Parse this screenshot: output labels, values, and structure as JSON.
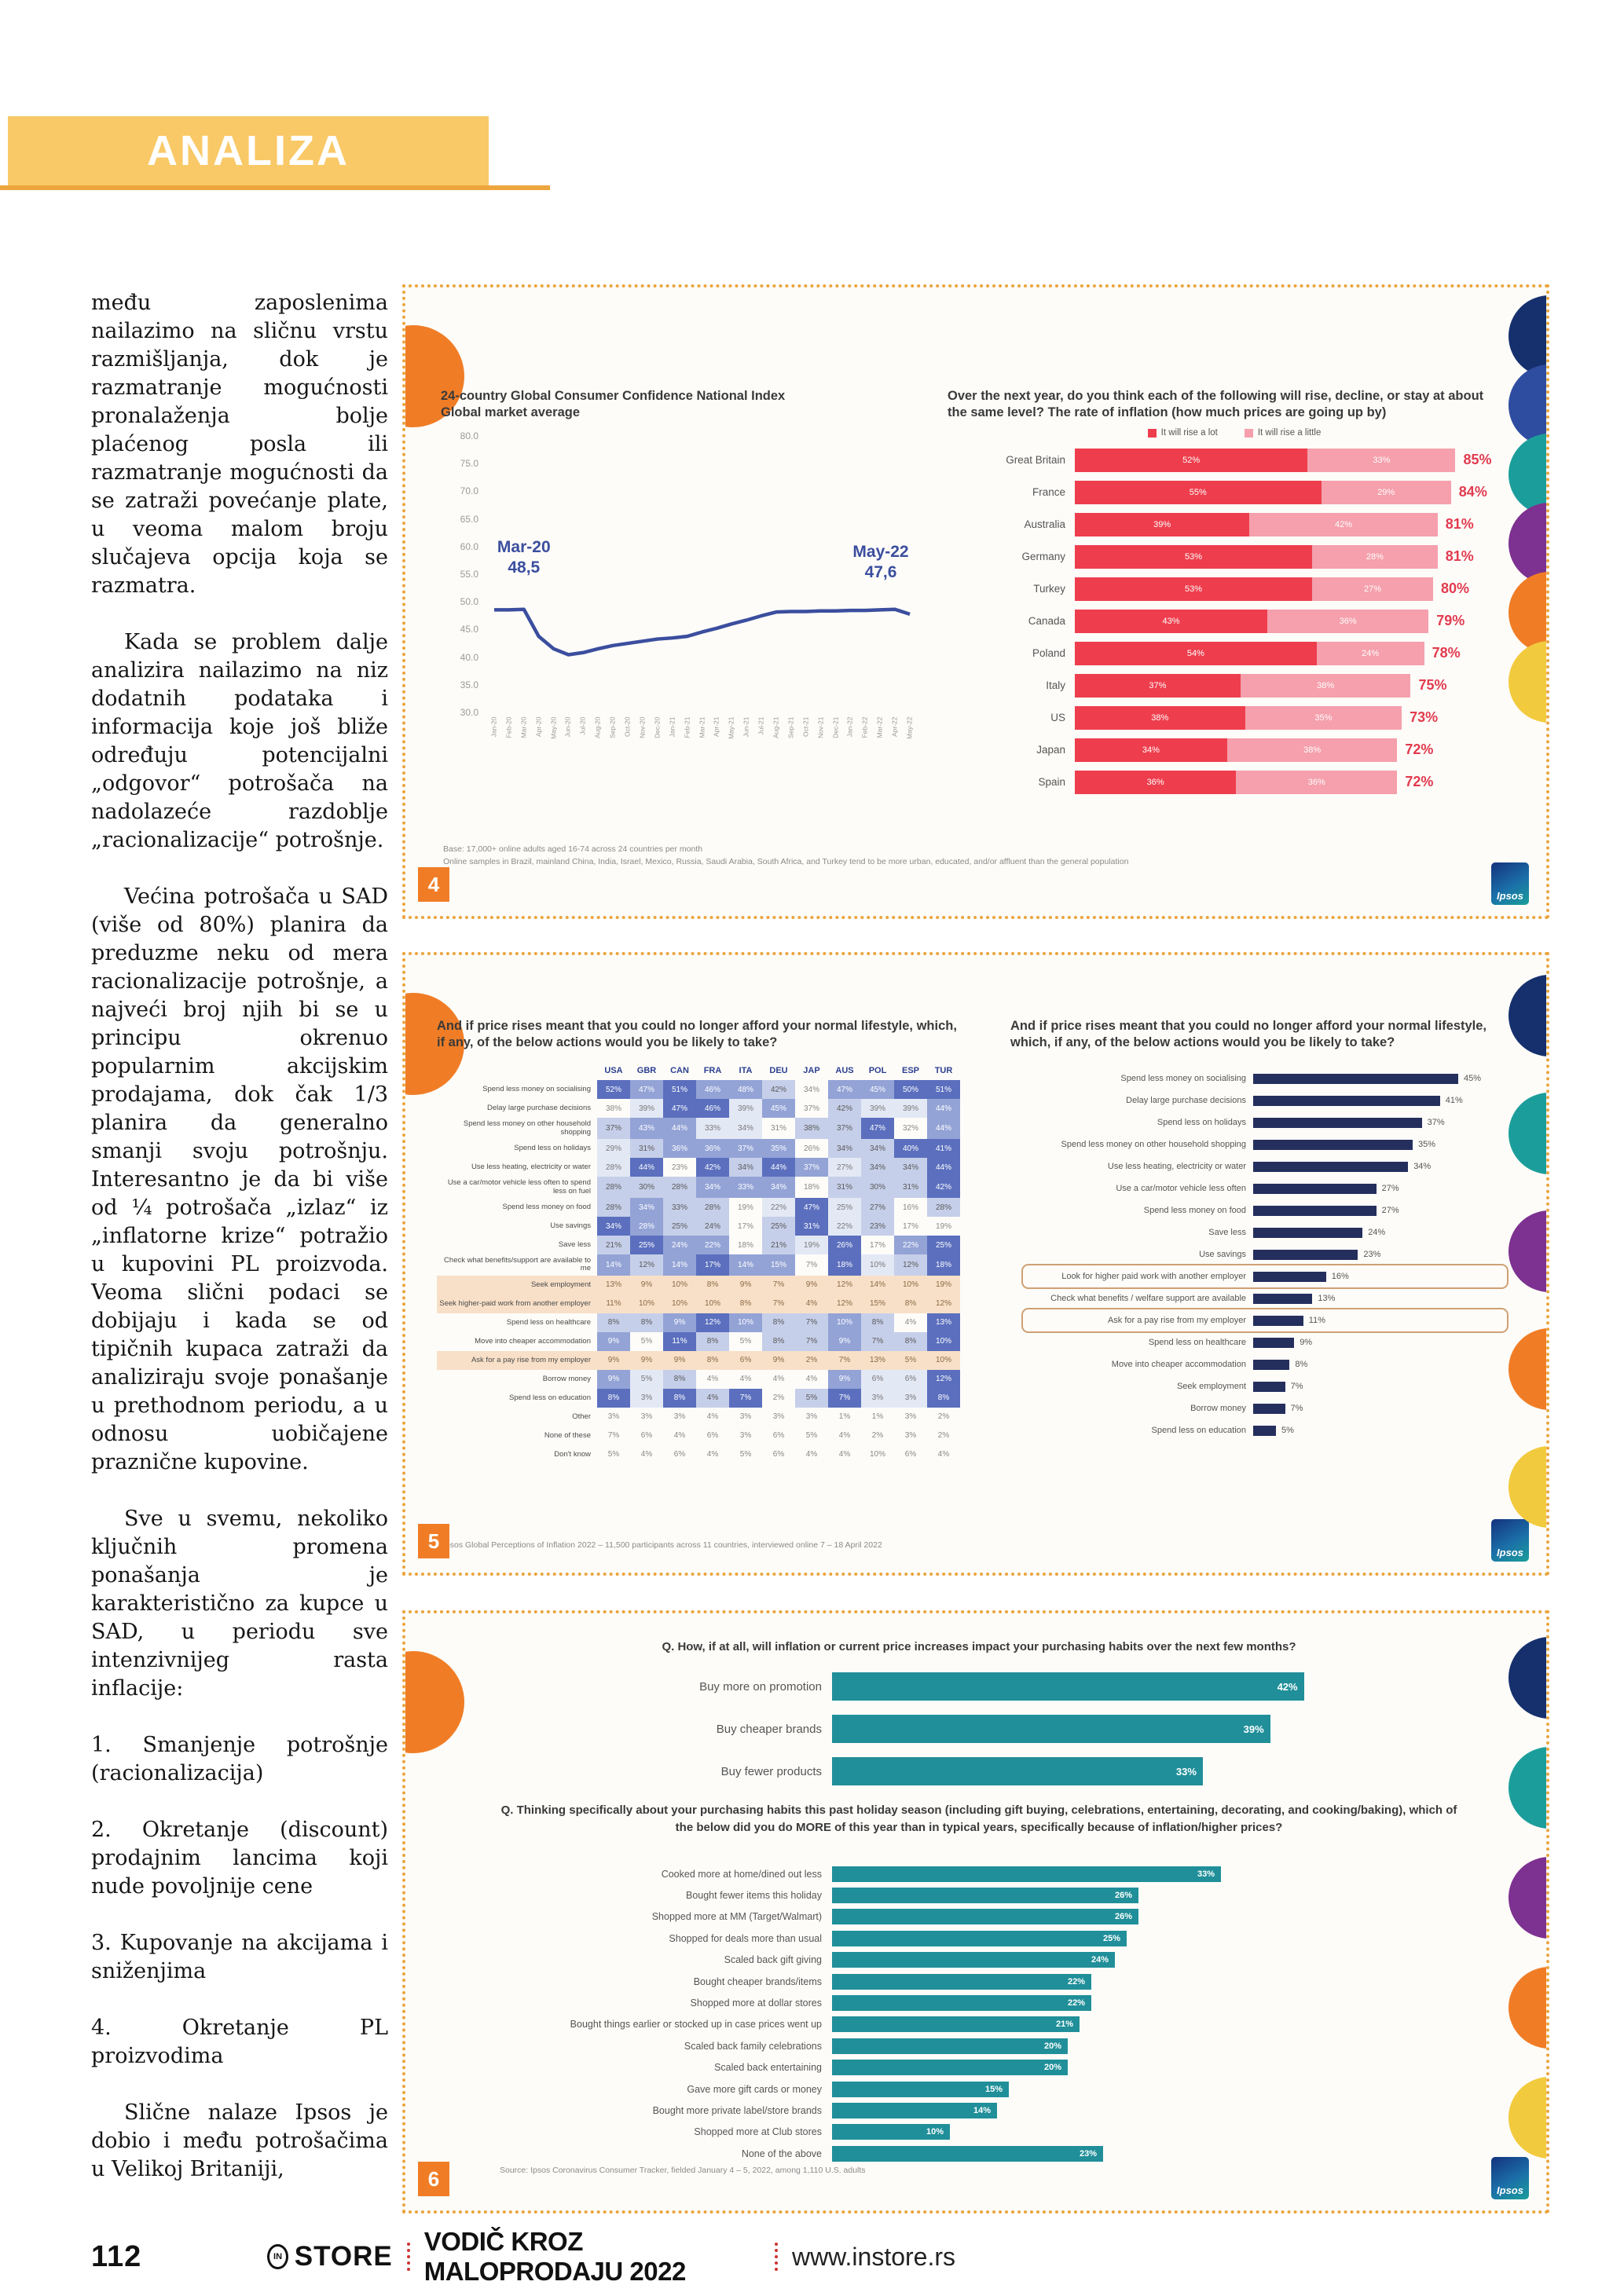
{
  "header": {
    "title": "ANALIZA"
  },
  "article": {
    "paragraphs": [
      {
        "indent": false,
        "text": "među zaposlenima nailazimo na sličnu vrstu razmišljanja, dok je razmatranje mogućnosti pronalaženja bolje plaćenog posla ili razmatranje mogućnosti da se zatraži povećanje plate, u veoma malom broju slučajeva opcija koja se razmatra."
      },
      {
        "indent": true,
        "text": "Kada se problem dalje analizira nailazimo na niz dodatnih podataka i informacija koje još bliže određuju potencijalni „odgovor“ potrošača na nadolazeće razdoblje „racionalizacije“ potrošnje."
      },
      {
        "indent": true,
        "text": "Većina potrošača u SAD (više od 80%) planira da preduzme neku od mera racionalizacije potrošnje, a najveći broj njih bi se u principu okrenuo popularnim akcijskim prodajama, dok čak 1/3 planira da generalno smanji svoju potrošnju. Interesantno je da bi više od ¼ potrošača „izlaz“ iz „inflatorne krize“ potražio u kupovini PL proizvoda. Veoma slični podaci se dobijaju i kada se od tipičnih kupaca zatraži da analiziraju svoje ponašanje u prethodnom periodu, a u odnosu uobičajene praznične kupovine."
      },
      {
        "indent": true,
        "text": "Sve u svemu, nekoliko ključnih promena ponašanja je karakteristično za kupce u SAD, u periodu sve intenzivnijeg rasta inflacije:"
      },
      {
        "indent": false,
        "text": "1. Smanjenje potrošnje (racionalizacija)"
      },
      {
        "indent": false,
        "text": "2. Okretanje (discount) prodajnim lancima koji nude povoljnije cene"
      },
      {
        "indent": false,
        "text": "3. Kupovanje na akcijama i sniženjima"
      },
      {
        "indent": false,
        "text": "4. Okretanje PL proizvodima"
      },
      {
        "indent": true,
        "text": "Slične nalaze Ipsos je dobio i među potrošačima u Velikoj Britaniji,"
      }
    ]
  },
  "branding": {
    "ipsos": "Ipsos"
  },
  "palette": {
    "banner_yellow": "#f9c967",
    "border_orange": "#eba43c",
    "accent_orange": "#f07d26",
    "line_navy": "#3b4e9e",
    "bar_red": "#ee3e4d",
    "bar_pink": "#f5a0ac",
    "bar_navy": "#252f5e",
    "bar_teal": "#208f99",
    "heat_dark": "#5b6fbe",
    "peach": "#f8e0c8"
  },
  "figures": {
    "fig4": {
      "badge": "4",
      "edge_circles": [
        "#16306e",
        "#2f4da0",
        "#1b9e9b",
        "#7d3190",
        "#f07d26",
        "#f2ca3d"
      ],
      "footnotes": [
        "Base: 17,000+ online adults aged 16-74 across 24 countries per month",
        "Online samples in Brazil, mainland China, India, Israel, Mexico, Russia, Saudi Arabia, South Africa, and Turkey tend to be more urban, educated, and/or affluent than the general population"
      ]
    },
    "fig5": {
      "badge": "5",
      "edge_circles": [
        "#16306e",
        "#1b9e9b",
        "#7d3190",
        "#f07d26",
        "#f2ca3d"
      ],
      "footnote": "Ipsos Global Perceptions of Inflation 2022 – 11,500 participants across 11 countries, interviewed online 7 – 18 April 2022"
    },
    "fig6": {
      "badge": "6",
      "edge_circles": [
        "#16306e",
        "#1b9e9b",
        "#7d3190",
        "#f07d26",
        "#f2ca3d"
      ],
      "source": "Source: Ipsos Coronavirus Consumer Tracker, fielded January 4 – 5, 2022, among 1,110 U.S. adults"
    }
  },
  "chart_data": [
    {
      "id": "confidence-line",
      "type": "line",
      "title": "24-country Global Consumer Confidence National Index",
      "subtitle": "Global market average",
      "ylim": [
        30,
        80
      ],
      "yticks": [
        "80.0",
        "75.0",
        "70.0",
        "65.0",
        "60.0",
        "55.0",
        "50.0",
        "45.0",
        "40.0",
        "35.0",
        "30.0"
      ],
      "x": [
        "Jan-20",
        "Feb-20",
        "Mar-20",
        "Apr-20",
        "May-20",
        "Jun-20",
        "Jul-20",
        "Aug-20",
        "Sep-20",
        "Oct-20",
        "Nov-20",
        "Dec-20",
        "Jan-21",
        "Feb-21",
        "Mar-21",
        "Apr-21",
        "May-21",
        "Jun-21",
        "Jul-21",
        "Aug-21",
        "Sep-21",
        "Oct-21",
        "Nov-21",
        "Dec-21",
        "Jan-22",
        "Feb-22",
        "Mar-22",
        "Apr-22",
        "May-22"
      ],
      "values": [
        48.4,
        48.4,
        48.5,
        43.5,
        41.2,
        40.1,
        40.5,
        41.2,
        41.8,
        42.2,
        42.6,
        43.0,
        43.2,
        43.5,
        44.3,
        45.0,
        45.8,
        46.5,
        47.3,
        48.0,
        48.1,
        48.1,
        48.2,
        48.2,
        48.3,
        48.3,
        48.4,
        48.5,
        47.6
      ],
      "annotations": [
        {
          "label": "Mar-20",
          "value": "48,5",
          "x_index": 2
        },
        {
          "label": "May-22",
          "value": "47,6",
          "x_index": 28
        }
      ]
    },
    {
      "id": "inflation-expectation",
      "type": "stacked-bar",
      "title": "Over the next year, do you think each of the following will rise, decline, or stay at about the same level? The rate of inflation (how much prices are going up by)",
      "legend": [
        "It will rise a lot",
        "It will rise a little"
      ],
      "colors": [
        "#ee3e4d",
        "#f5a0ac"
      ],
      "categories": [
        "Great Britain",
        "France",
        "Australia",
        "Germany",
        "Turkey",
        "Canada",
        "Poland",
        "Italy",
        "US",
        "Japan",
        "Spain"
      ],
      "series": [
        {
          "name": "It will rise a lot",
          "values": [
            52,
            55,
            39,
            53,
            53,
            43,
            54,
            37,
            38,
            34,
            36
          ]
        },
        {
          "name": "It will rise a little",
          "values": [
            33,
            29,
            42,
            28,
            27,
            36,
            24,
            38,
            35,
            38,
            36
          ]
        }
      ],
      "totals": [
        "85%",
        "84%",
        "81%",
        "81%",
        "80%",
        "79%",
        "78%",
        "75%",
        "73%",
        "72%",
        "72%"
      ]
    },
    {
      "id": "actions-by-country",
      "type": "heatmap",
      "title": "And if price rises meant that you could no longer afford your normal lifestyle, which, if any, of the below actions would you be likely to take?",
      "columns": [
        "USA",
        "GBR",
        "CAN",
        "FRA",
        "ITA",
        "DEU",
        "JAP",
        "AUS",
        "POL",
        "ESP",
        "TUR"
      ],
      "rows": [
        {
          "label": "Spend less money on socialising",
          "values": [
            52,
            47,
            51,
            46,
            48,
            42,
            34,
            47,
            45,
            50,
            51
          ]
        },
        {
          "label": "Delay large purchase decisions",
          "values": [
            38,
            39,
            47,
            46,
            39,
            45,
            37,
            42,
            39,
            39,
            44
          ]
        },
        {
          "label": "Spend less money on other household shopping",
          "values": [
            37,
            43,
            44,
            33,
            34,
            31,
            38,
            37,
            47,
            32,
            44
          ]
        },
        {
          "label": "Spend less on holidays",
          "values": [
            29,
            31,
            36,
            36,
            37,
            35,
            26,
            34,
            34,
            40,
            41
          ]
        },
        {
          "label": "Use less heating, electricity or water",
          "values": [
            28,
            44,
            23,
            42,
            34,
            44,
            37,
            27,
            34,
            34,
            44
          ]
        },
        {
          "label": "Use a car/motor vehicle less often to spend less on fuel",
          "values": [
            28,
            30,
            28,
            34,
            33,
            34,
            18,
            31,
            30,
            31,
            42
          ]
        },
        {
          "label": "Spend less money on food",
          "values": [
            28,
            34,
            33,
            28,
            19,
            22,
            47,
            25,
            27,
            16,
            28
          ]
        },
        {
          "label": "Use savings",
          "values": [
            34,
            28,
            25,
            24,
            17,
            25,
            31,
            22,
            23,
            17,
            19
          ]
        },
        {
          "label": "Save less",
          "values": [
            21,
            25,
            24,
            22,
            18,
            21,
            19,
            26,
            17,
            22,
            25
          ]
        },
        {
          "label": "Check what benefits/support are available to me",
          "values": [
            14,
            12,
            14,
            17,
            14,
            15,
            7,
            18,
            10,
            12,
            18
          ]
        },
        {
          "label": "Seek employment",
          "band": "peach",
          "values": [
            13,
            9,
            10,
            8,
            9,
            7,
            9,
            12,
            14,
            10,
            19
          ]
        },
        {
          "label": "Seek higher-paid work from another employer",
          "band": "peach",
          "values": [
            11,
            10,
            10,
            10,
            8,
            7,
            4,
            12,
            15,
            8,
            12
          ]
        },
        {
          "label": "Spend less on healthcare",
          "values": [
            8,
            8,
            9,
            12,
            10,
            8,
            7,
            10,
            8,
            4,
            13
          ]
        },
        {
          "label": "Move into cheaper accommodation",
          "values": [
            9,
            5,
            11,
            8,
            5,
            8,
            7,
            9,
            7,
            8,
            10
          ]
        },
        {
          "label": "Ask for a pay rise from my employer",
          "band": "peach",
          "values": [
            9,
            9,
            9,
            8,
            6,
            9,
            2,
            7,
            13,
            5,
            10
          ]
        },
        {
          "label": "Borrow money",
          "values": [
            9,
            5,
            8,
            4,
            4,
            4,
            4,
            9,
            6,
            6,
            12
          ]
        },
        {
          "label": "Spend less on education",
          "values": [
            8,
            3,
            8,
            4,
            7,
            2,
            5,
            7,
            3,
            3,
            8
          ]
        },
        {
          "label": "Other",
          "heat": false,
          "values": [
            3,
            3,
            3,
            4,
            3,
            3,
            3,
            1,
            1,
            3,
            2
          ]
        },
        {
          "label": "None of these",
          "heat": false,
          "values": [
            7,
            6,
            4,
            6,
            3,
            6,
            5,
            4,
            2,
            3,
            2
          ]
        },
        {
          "label": "Don't know",
          "heat": false,
          "values": [
            5,
            4,
            6,
            4,
            5,
            6,
            4,
            4,
            10,
            6,
            4
          ]
        }
      ]
    },
    {
      "id": "actions-gb",
      "type": "bar",
      "title": "And if price rises meant that you could no longer afford your normal lifestyle, which, if any, of the below actions would you be likely to take?",
      "categories": [
        "Spend less money on socialising",
        "Delay large purchase decisions",
        "Spend less on holidays",
        "Spend less money on other household shopping",
        "Use less heating, electricity or water",
        "Use a car/motor vehicle less often",
        "Spend less money on food",
        "Save less",
        "Use savings",
        "Look for higher paid work with another employer",
        "Check what benefits / welfare support are available",
        "Ask for a pay rise from my employer",
        "Spend less on healthcare",
        "Move into cheaper accommodation",
        "Seek employment",
        "Borrow money",
        "Spend less on education"
      ],
      "values": [
        45,
        41,
        37,
        35,
        34,
        27,
        27,
        24,
        23,
        16,
        13,
        11,
        9,
        8,
        7,
        7,
        5
      ],
      "boxed_indices": [
        9,
        11
      ]
    },
    {
      "id": "inflation-habits",
      "type": "bar",
      "question": "Q. How, if at all, will inflation or current price increases impact your purchasing habits over the next few months?",
      "categories": [
        "Buy more on promotion",
        "Buy cheaper brands",
        "Buy fewer products"
      ],
      "values": [
        42,
        39,
        33
      ]
    },
    {
      "id": "holiday-habits",
      "type": "bar",
      "question": "Q. Thinking specifically about your purchasing habits this past holiday season (including gift buying, celebrations, entertaining, decorating, and cooking/baking), which of the below did you do MORE of this year than in typical years, specifically because of inflation/higher prices?",
      "categories": [
        "Cooked more at home/dined out less",
        "Bought fewer items this holiday",
        "Shopped more at MM (Target/Walmart)",
        "Shopped for deals more than usual",
        "Scaled back gift giving",
        "Bought cheaper brands/items",
        "Shopped more at dollar stores",
        "Bought things earlier or stocked up in case prices went up",
        "Scaled back family celebrations",
        "Scaled back entertaining",
        "Gave more gift cards or money",
        "Bought more private label/store brands",
        "Shopped more at Club stores",
        "None of the above"
      ],
      "values": [
        33,
        26,
        26,
        25,
        24,
        22,
        22,
        21,
        20,
        20,
        15,
        14,
        10,
        23
      ]
    }
  ],
  "footer": {
    "page_number": "112",
    "logo_in": "IN",
    "brand": "STORE",
    "guide": "VODIČ KROZ MALOPRODAJU 2022",
    "site": "www.instore.rs"
  }
}
